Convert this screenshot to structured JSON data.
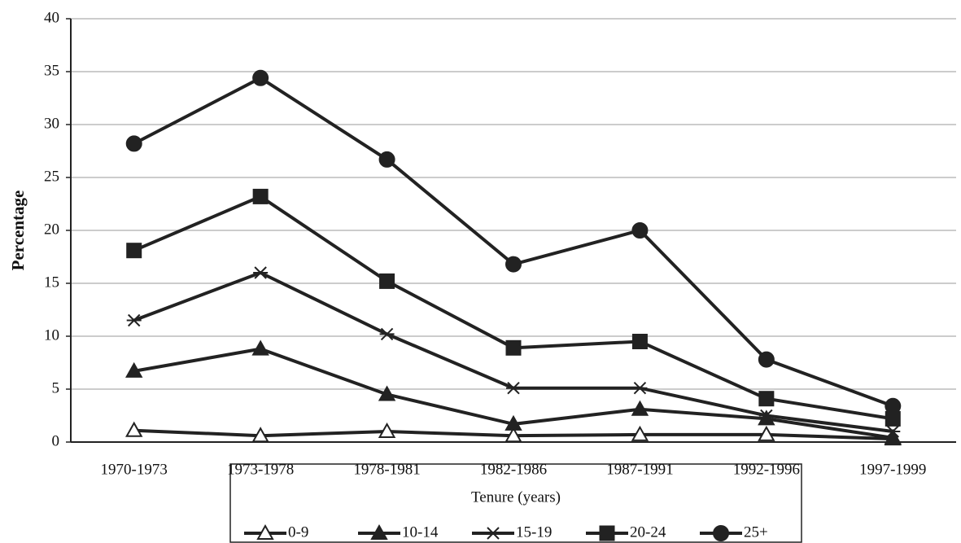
{
  "chart_data": {
    "type": "line",
    "y_label": "Percentage",
    "x_label": "Tenure (years)",
    "categories": [
      "1970-1973",
      "1973-1978",
      "1978-1981",
      "1982-1986",
      "1987-1991",
      "1992-1996",
      "1997-1999"
    ],
    "series": [
      {
        "name": "0-9",
        "color": "#222222",
        "marker": "open-triangle",
        "values": [
          1.1,
          0.6,
          1.0,
          0.6,
          0.7,
          0.7,
          0.3
        ]
      },
      {
        "name": "10-14",
        "color": "#222222",
        "marker": "triangle",
        "values": [
          6.7,
          8.8,
          4.5,
          1.7,
          3.1,
          2.2,
          0.4
        ]
      },
      {
        "name": "15-19",
        "color": "#222222",
        "marker": "asterisk",
        "values": [
          11.5,
          16.0,
          10.2,
          5.1,
          5.1,
          2.5,
          1.0
        ]
      },
      {
        "name": "20-24",
        "color": "#222222",
        "marker": "square",
        "values": [
          18.1,
          23.2,
          15.2,
          8.9,
          9.5,
          4.1,
          2.2
        ]
      },
      {
        "name": "25+",
        "color": "#222222",
        "marker": "circle",
        "values": [
          28.2,
          34.4,
          26.7,
          16.8,
          20.0,
          7.8,
          3.4
        ]
      }
    ],
    "ylim": [
      0,
      40
    ],
    "yticks": [
      0,
      5,
      10,
      15,
      20,
      25,
      30,
      35,
      40
    ],
    "grid": true,
    "legend": "bottom"
  }
}
